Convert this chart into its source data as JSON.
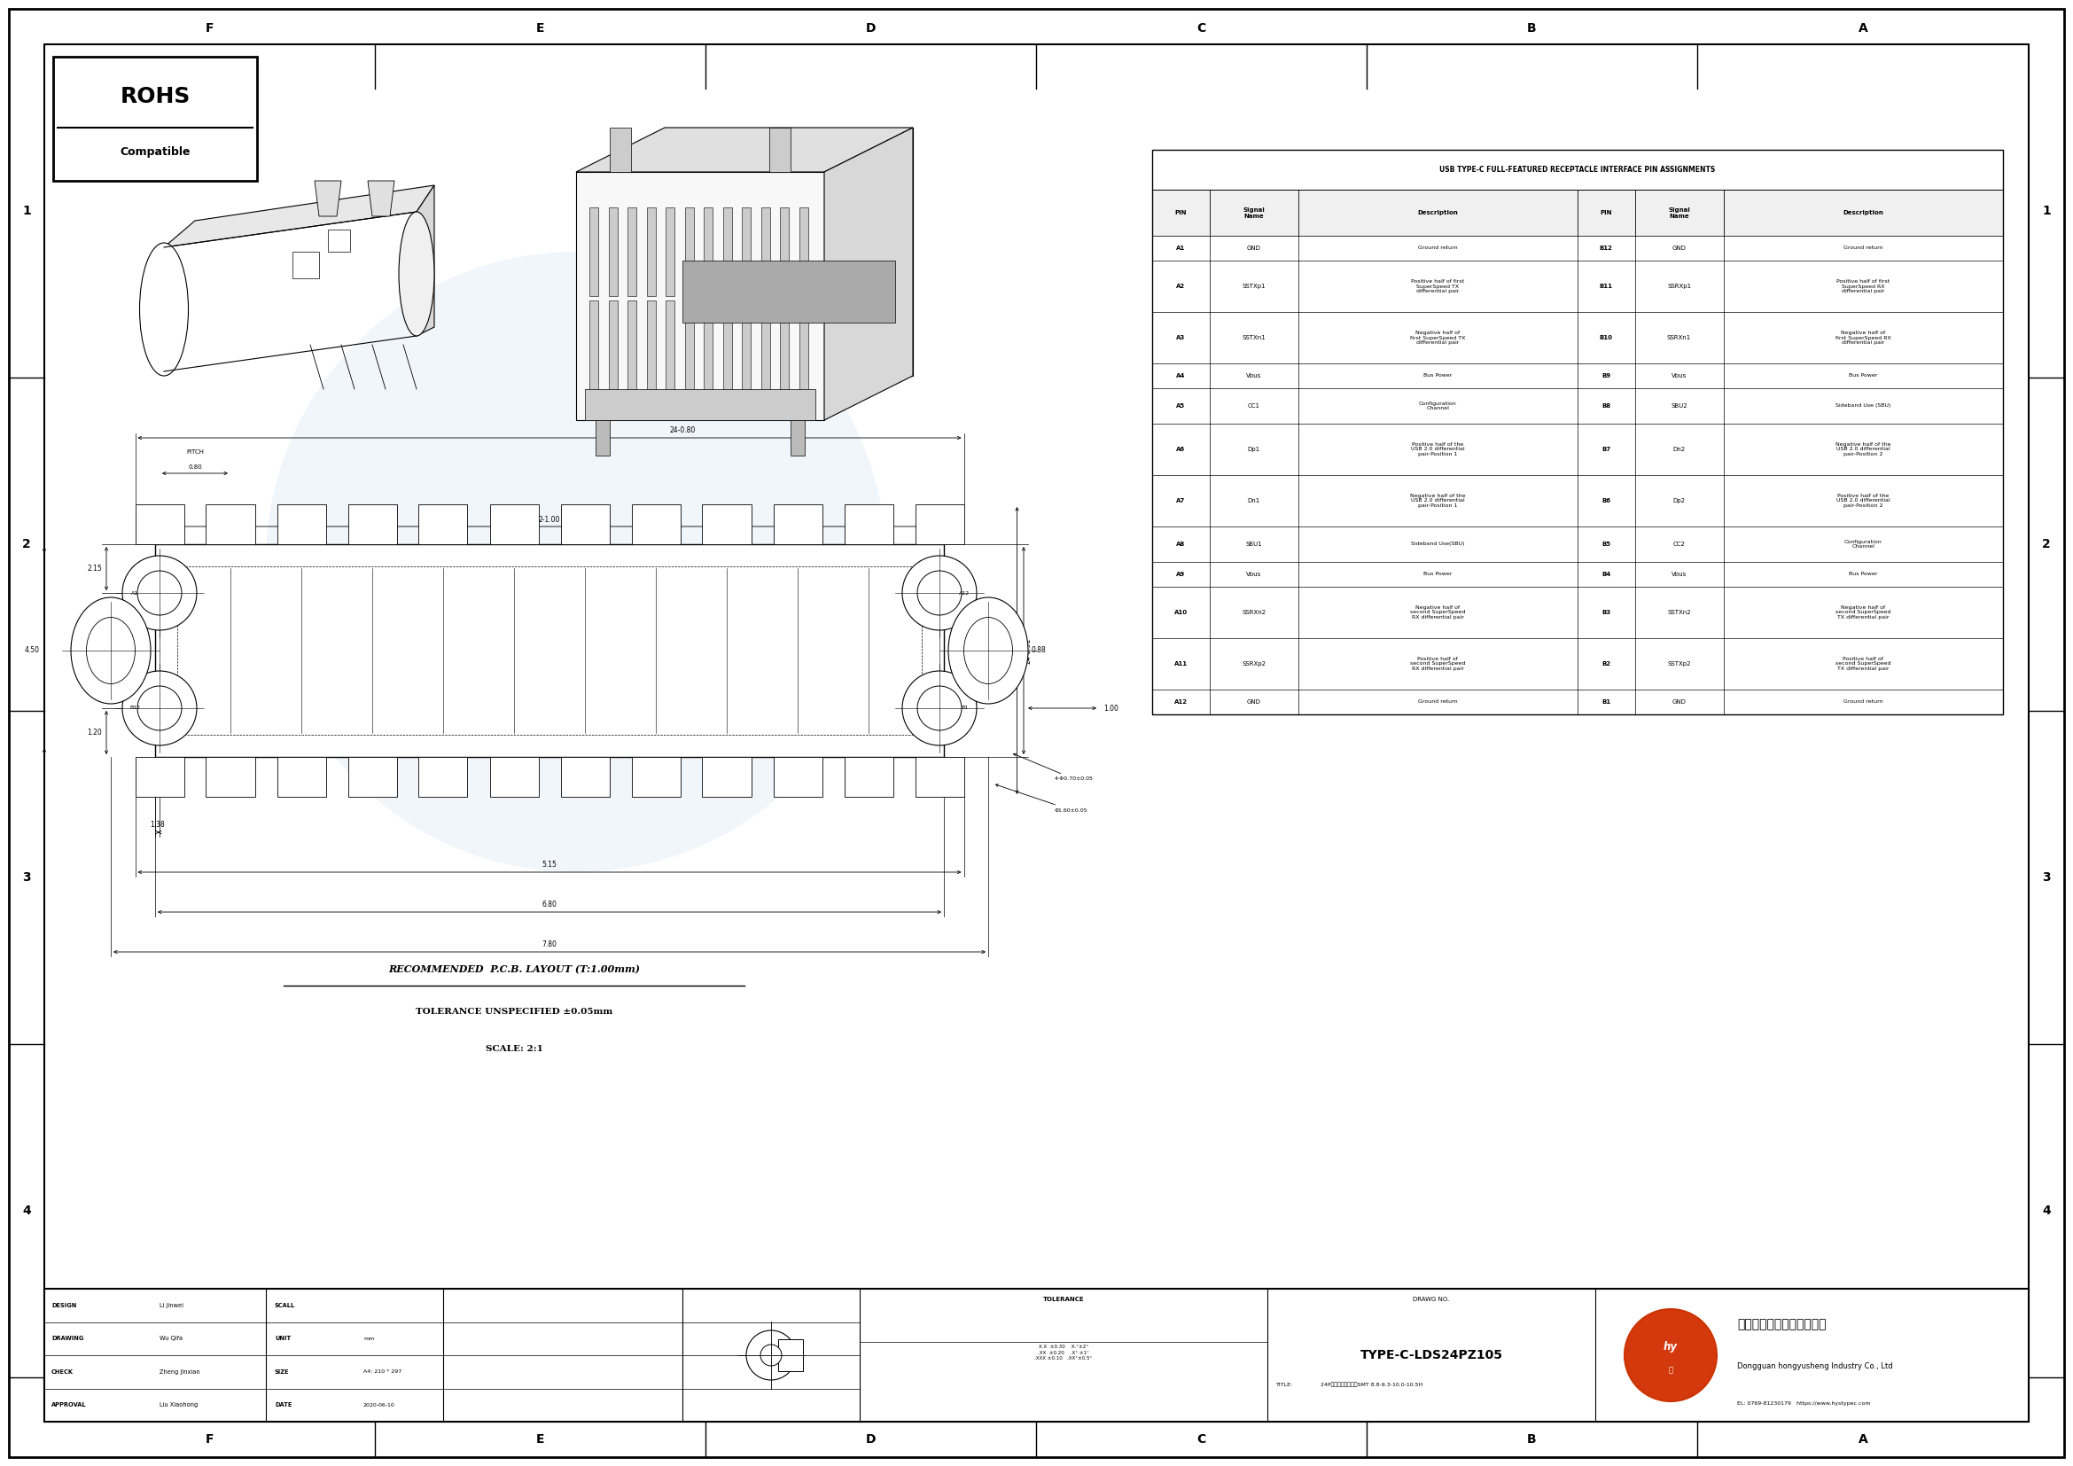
{
  "page_width": 23.39,
  "page_height": 16.54,
  "bg_color": "#ffffff",
  "title_text": "USB TYPE-C FULL-FEATURED RECEPTACLE INTERFACE PIN ASSIGNMENTS",
  "table_header": [
    "PIN",
    "Signal\nName",
    "Description",
    "PIN",
    "Signal\nName",
    "Description"
  ],
  "table_rows": [
    [
      "A1",
      "GND",
      "Ground return",
      "B12",
      "GND",
      "Ground return"
    ],
    [
      "A2",
      "SSTXp1",
      "Positive half of first\nSuperSpeed TX\ndifferential pair",
      "B11",
      "SSRXp1",
      "Positive half of first\nSuperSpeed RX\ndifferential pair"
    ],
    [
      "A3",
      "SSTXn1",
      "Negative half of\nfirst SuperSpeed TX\ndifferential pair",
      "B10",
      "SSRXn1",
      "Negative half of\nfirst SuperSpeed RX\ndifferential pair"
    ],
    [
      "A4",
      "Vbus",
      "Bus Power",
      "B9",
      "Vbus",
      "Bus Power"
    ],
    [
      "A5",
      "CC1",
      "Configuration\nChannel",
      "B8",
      "SBU2",
      "Sideband Use (SBU)"
    ],
    [
      "A6",
      "Dp1",
      "Positive half of the\nUSB 2.0 differential\npair-Position 1",
      "B7",
      "Dn2",
      "Negative half of the\nUSB 2.0 differential\npair-Position 2"
    ],
    [
      "A7",
      "Dn1",
      "Negative half of the\nUSB 2.0 differential\npair-Position 1",
      "B6",
      "Dp2",
      "Positive half of the\nUSB 2.0 differential\npair-Position 2"
    ],
    [
      "A8",
      "SBU1",
      "Sideband Use(SBU)",
      "B5",
      "CC2",
      "Configuration\nChannel"
    ],
    [
      "A9",
      "Vbus",
      "Bus Power",
      "B4",
      "Vbus",
      "Bus Power"
    ],
    [
      "A10",
      "SSRXn2",
      "Negative half of\nsecond SuperSpeed\nRX differential pair",
      "B3",
      "SSTXn2",
      "Negative half of\nsecond SuperSpeed\nTX differential pair"
    ],
    [
      "A11",
      "SSRXp2",
      "Positive half of\nsecond SuperSpeed\nRX differential pair",
      "B2",
      "SSTXp2",
      "Positive half of\nsecond SuperSpeed\nTX differential pair"
    ],
    [
      "A12",
      "GND",
      "Ground return",
      "B1",
      "GND",
      "Ground return"
    ]
  ],
  "notes": [
    "RECOMMENDED  P.C.B. LAYOUT (T:1.00mm)",
    "TOLERANCE UNSPECIFIED ±0.05mm",
    "SCALE: 2:1"
  ],
  "title_block": {
    "design": "Li Jinwei",
    "drawing": "Wu Qifa",
    "check": "Zheng Jinxian",
    "approval": "Liu Xiaohong",
    "unit": "mm",
    "size": "A4: 210 * 297",
    "date": "2020-06-10",
    "tol_line1": "X.X  ±0.30    X.°±2°",
    "tol_line2": ".XX  ±0.20    .X° ±1°",
    "tol_line3": ".XXX ±0.10   .XX°±0.5°",
    "drawno": "TYPE-C-LDS24PZ105",
    "title_sub": "24P立式贴片四脚插板SMT 8.8-9.3-10.0-10.5H"
  },
  "company": "东菞市宏熔盛实业有限公司",
  "company_en": "Dongguan hongyusheng Industry Co., Ltd",
  "tel": "EL: 0769-81230179   https://www.hystypec.com",
  "grid_labels_top": [
    "F",
    "E",
    "D",
    "C",
    "B",
    "A"
  ],
  "grid_labels_side": [
    "1",
    "2",
    "3",
    "4"
  ],
  "watermark_color": "#c8ddf0"
}
